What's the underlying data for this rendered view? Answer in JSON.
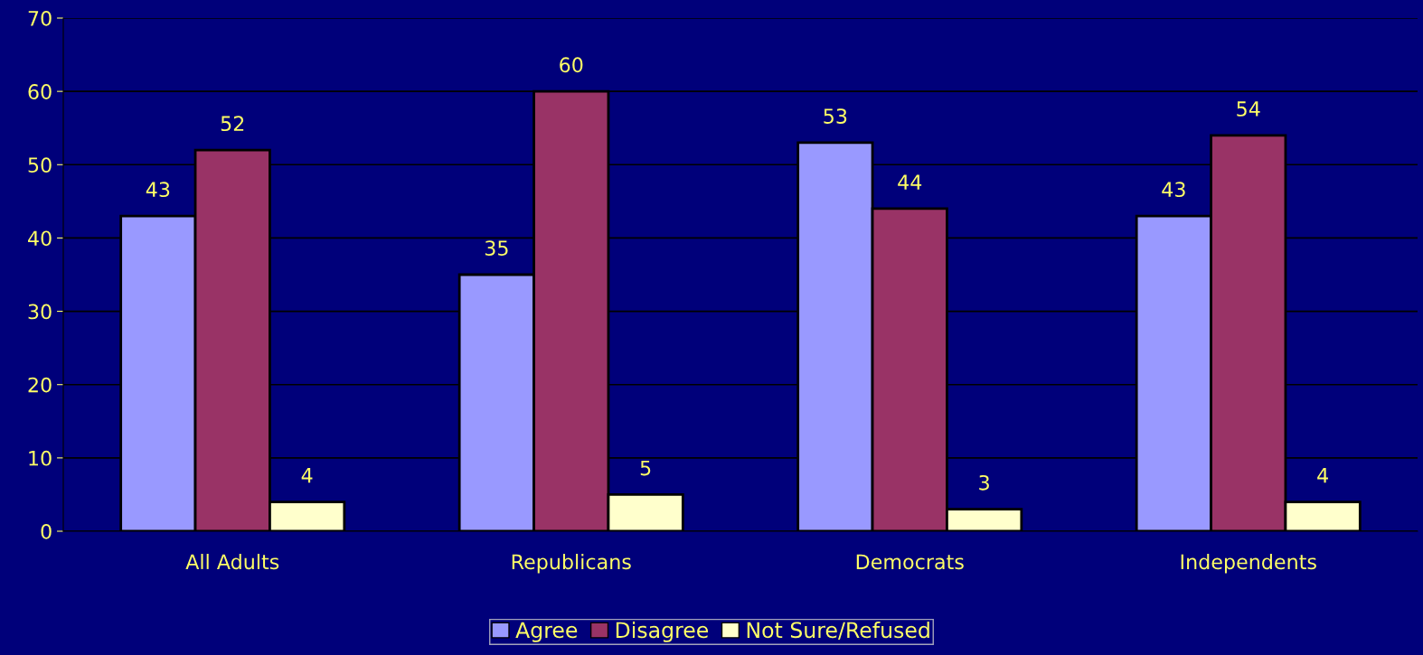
{
  "chart_data": {
    "type": "bar",
    "categories": [
      "All Adults",
      "Republicans",
      "Democrats",
      "Independents"
    ],
    "series": [
      {
        "name": "Agree",
        "color": "#9999ff",
        "values": [
          43,
          35,
          53,
          43
        ]
      },
      {
        "name": "Disagree",
        "color": "#993366",
        "values": [
          52,
          60,
          44,
          54
        ]
      },
      {
        "name": "Not Sure/Refused",
        "color": "#ffffcc",
        "values": [
          4,
          5,
          3,
          4
        ]
      }
    ],
    "ylim": [
      0,
      70
    ],
    "yticks": [
      0,
      10,
      20,
      30,
      40,
      50,
      60,
      70
    ],
    "grid": "y",
    "legend": "bottom",
    "data_labels": true
  }
}
